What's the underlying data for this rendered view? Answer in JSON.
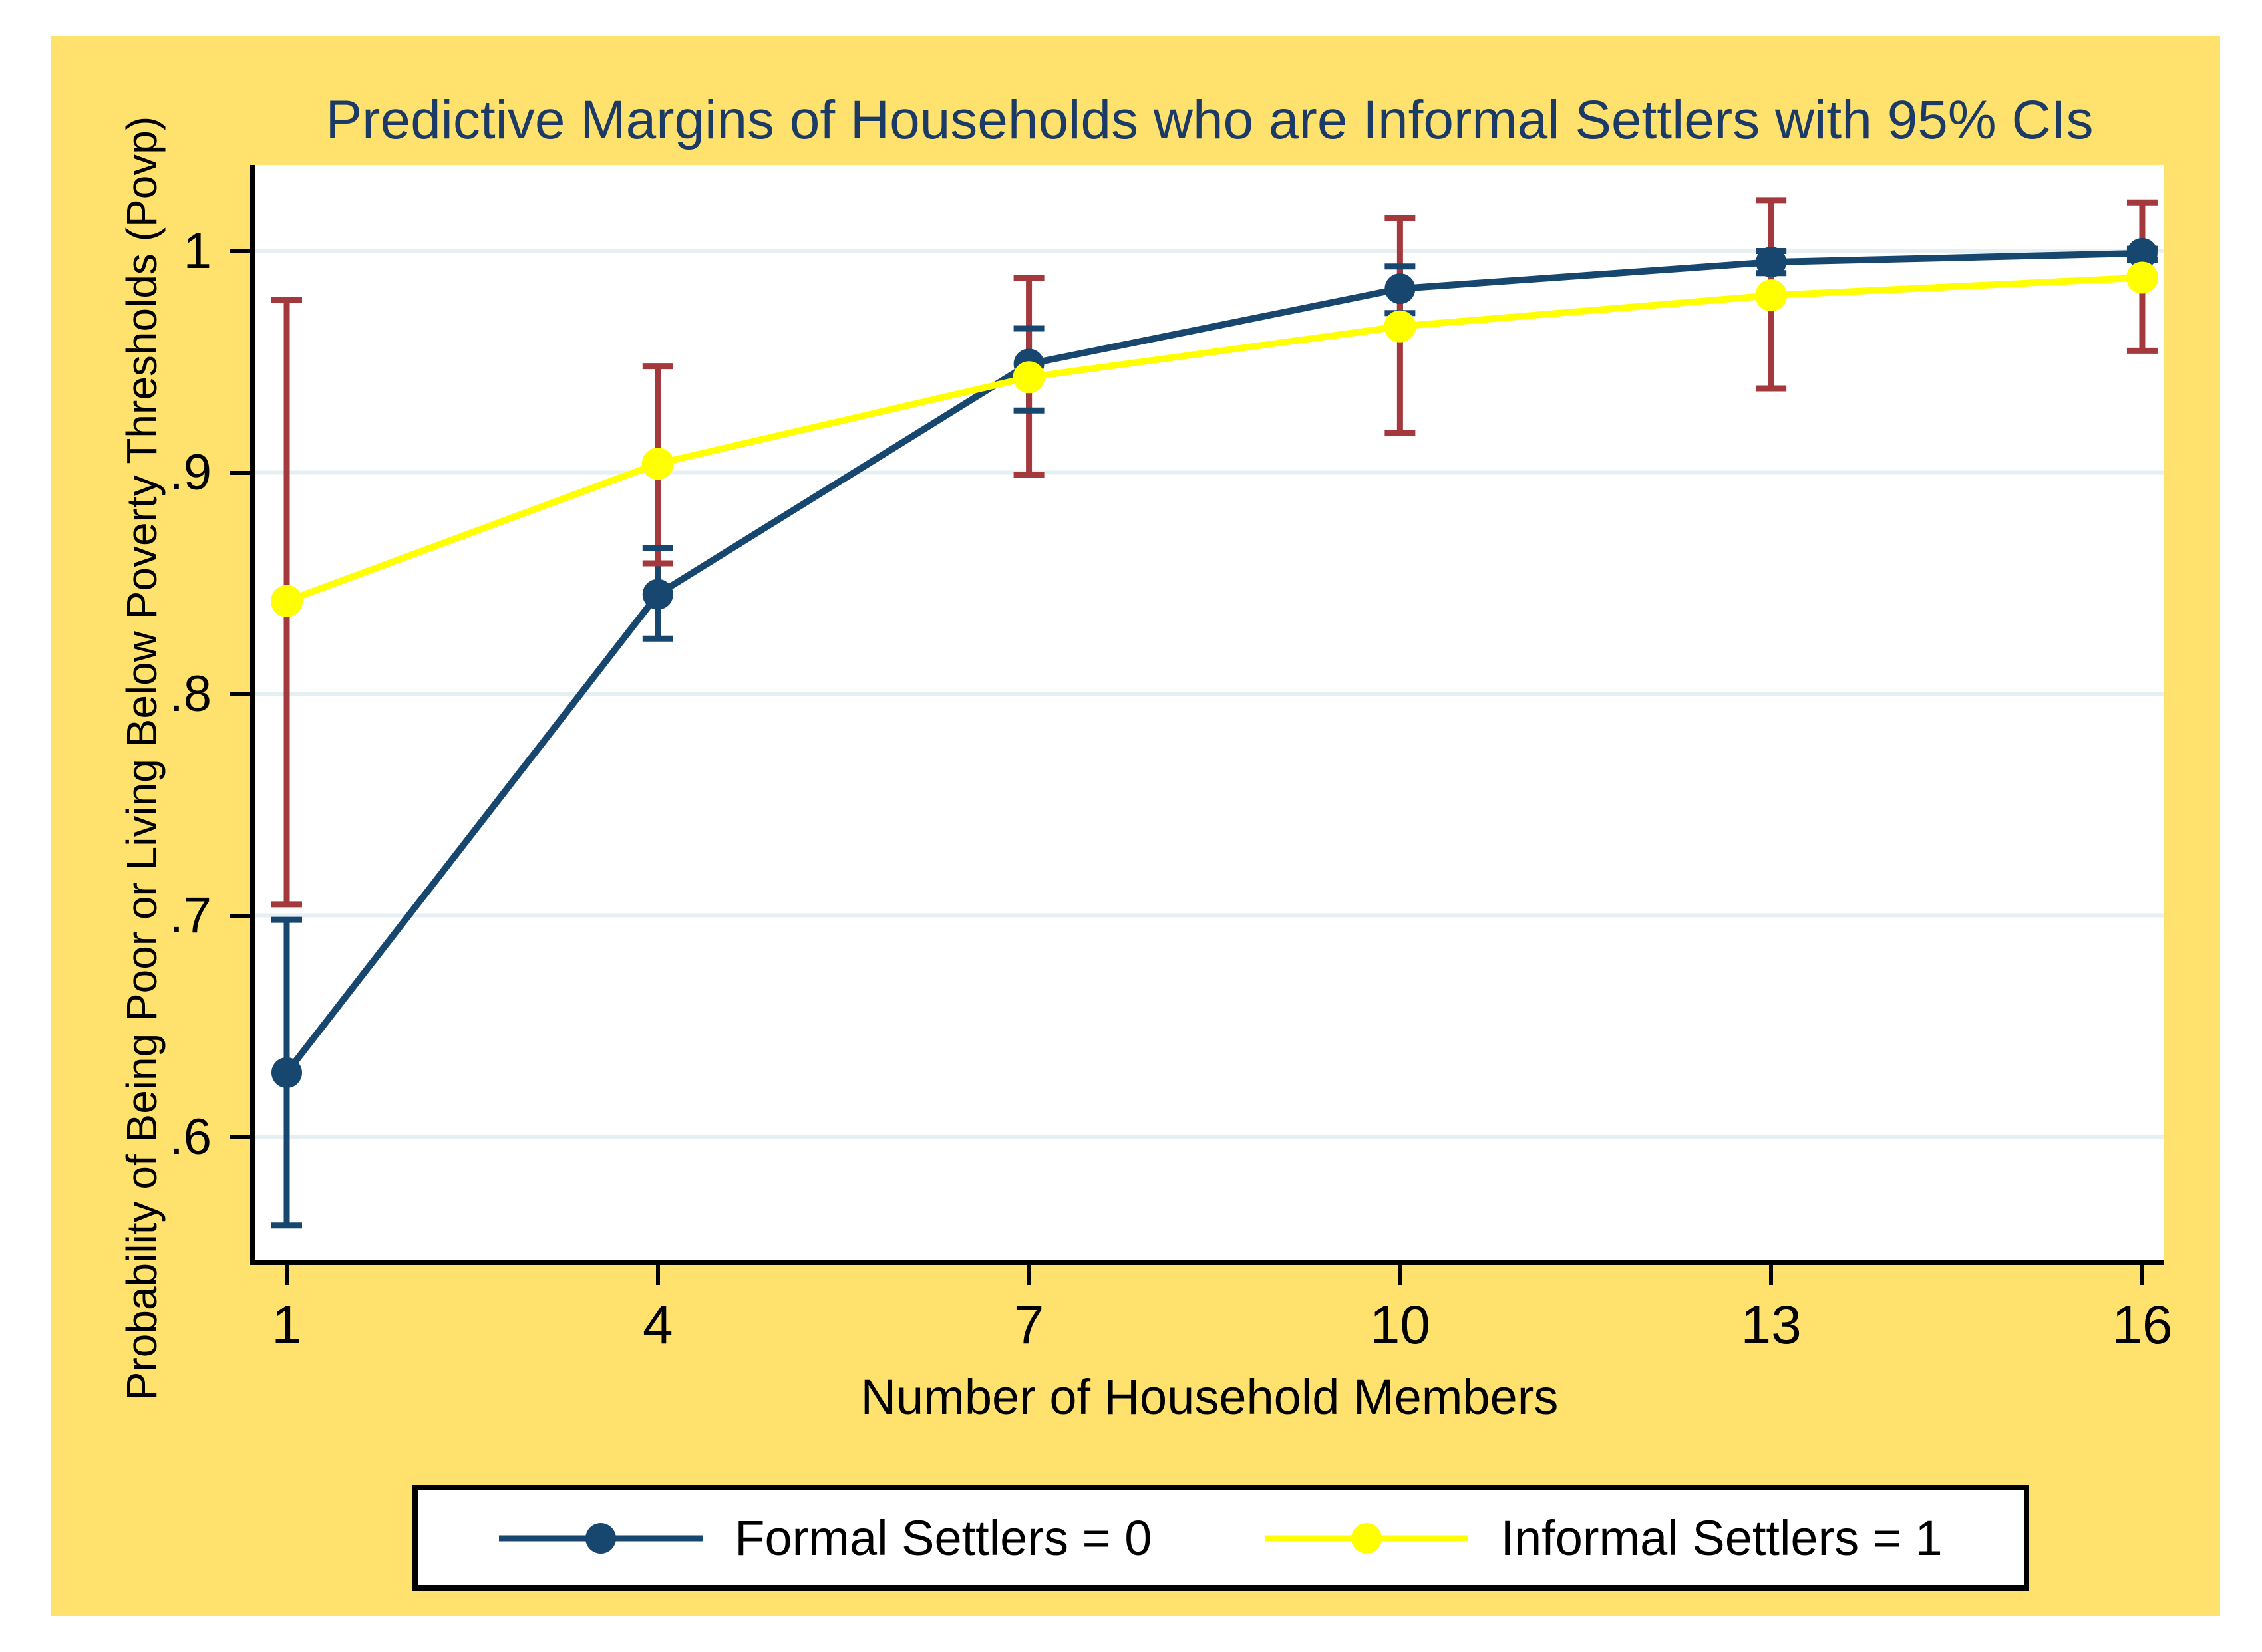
{
  "title": {
    "text": "Predictive Margins of Households who are Informal Settlers with 95% CIs",
    "color": "#1B3A66"
  },
  "colors": {
    "figure_background": "#FFFFFF",
    "graph_background": "#FFE26D",
    "plot_background": "#FFFFFF",
    "axis": "#000000",
    "gridline": "#E6F0F2",
    "navy_series": "#17466F",
    "yellow_series": "#FFFF00",
    "ci_red": "#A3383D",
    "text": "#000000"
  },
  "x_axis": {
    "title": "Number of Household Members",
    "tick_labels": [
      "1",
      "4",
      "7",
      "10",
      "13",
      "16"
    ]
  },
  "y_axis": {
    "title": "Probability of Being Poor or Living Below Poverty Thresholds (Povp)",
    "tick_labels": [
      "1",
      ".9",
      ".8",
      ".7",
      ".6"
    ]
  },
  "legend": {
    "entries": [
      "Formal Settlers = 0",
      "Informal Settlers = 1"
    ]
  },
  "chart_data": {
    "type": "line",
    "title": "Predictive Margins of Households who are Informal Settlers with 95% CIs",
    "xlabel": "Number of Household Members",
    "ylabel": "Probability of Being Poor or Living Below Poverty Thresholds (Povp)",
    "x": [
      1,
      4,
      7,
      10,
      13,
      16
    ],
    "xticks": [
      1,
      4,
      7,
      10,
      13,
      16
    ],
    "yticks": [
      {
        "value": 1.0,
        "label": "1"
      },
      {
        "value": 0.9,
        "label": ".9"
      },
      {
        "value": 0.8,
        "label": ".8"
      },
      {
        "value": 0.7,
        "label": ".7"
      },
      {
        "value": 0.6,
        "label": ".6"
      }
    ],
    "xlim": [
      0.74,
      16.18
    ],
    "ylim": [
      0.544,
      1.039
    ],
    "grid": true,
    "legend_position": "bottom",
    "series": [
      {
        "name": "Formal Settlers = 0",
        "color": "#17466F",
        "marker": "circle",
        "values": [
          0.629,
          0.845,
          0.949,
          0.983,
          0.995,
          0.999
        ],
        "ci_low": [
          0.56,
          0.825,
          0.928,
          0.972,
          0.99,
          0.996
        ],
        "ci_high": [
          0.698,
          0.866,
          0.965,
          0.993,
          1.0,
          1.001
        ],
        "ci_color": "#17466F"
      },
      {
        "name": "Informal Settlers = 1",
        "color": "#FFFF00",
        "marker": "circle",
        "values": [
          0.842,
          0.904,
          0.943,
          0.966,
          0.98,
          0.988
        ],
        "ci_low": [
          0.705,
          0.859,
          0.899,
          0.918,
          0.938,
          0.955
        ],
        "ci_high": [
          0.978,
          0.948,
          0.988,
          1.015,
          1.023,
          1.022
        ],
        "ci_color": "#A3383D"
      }
    ]
  }
}
